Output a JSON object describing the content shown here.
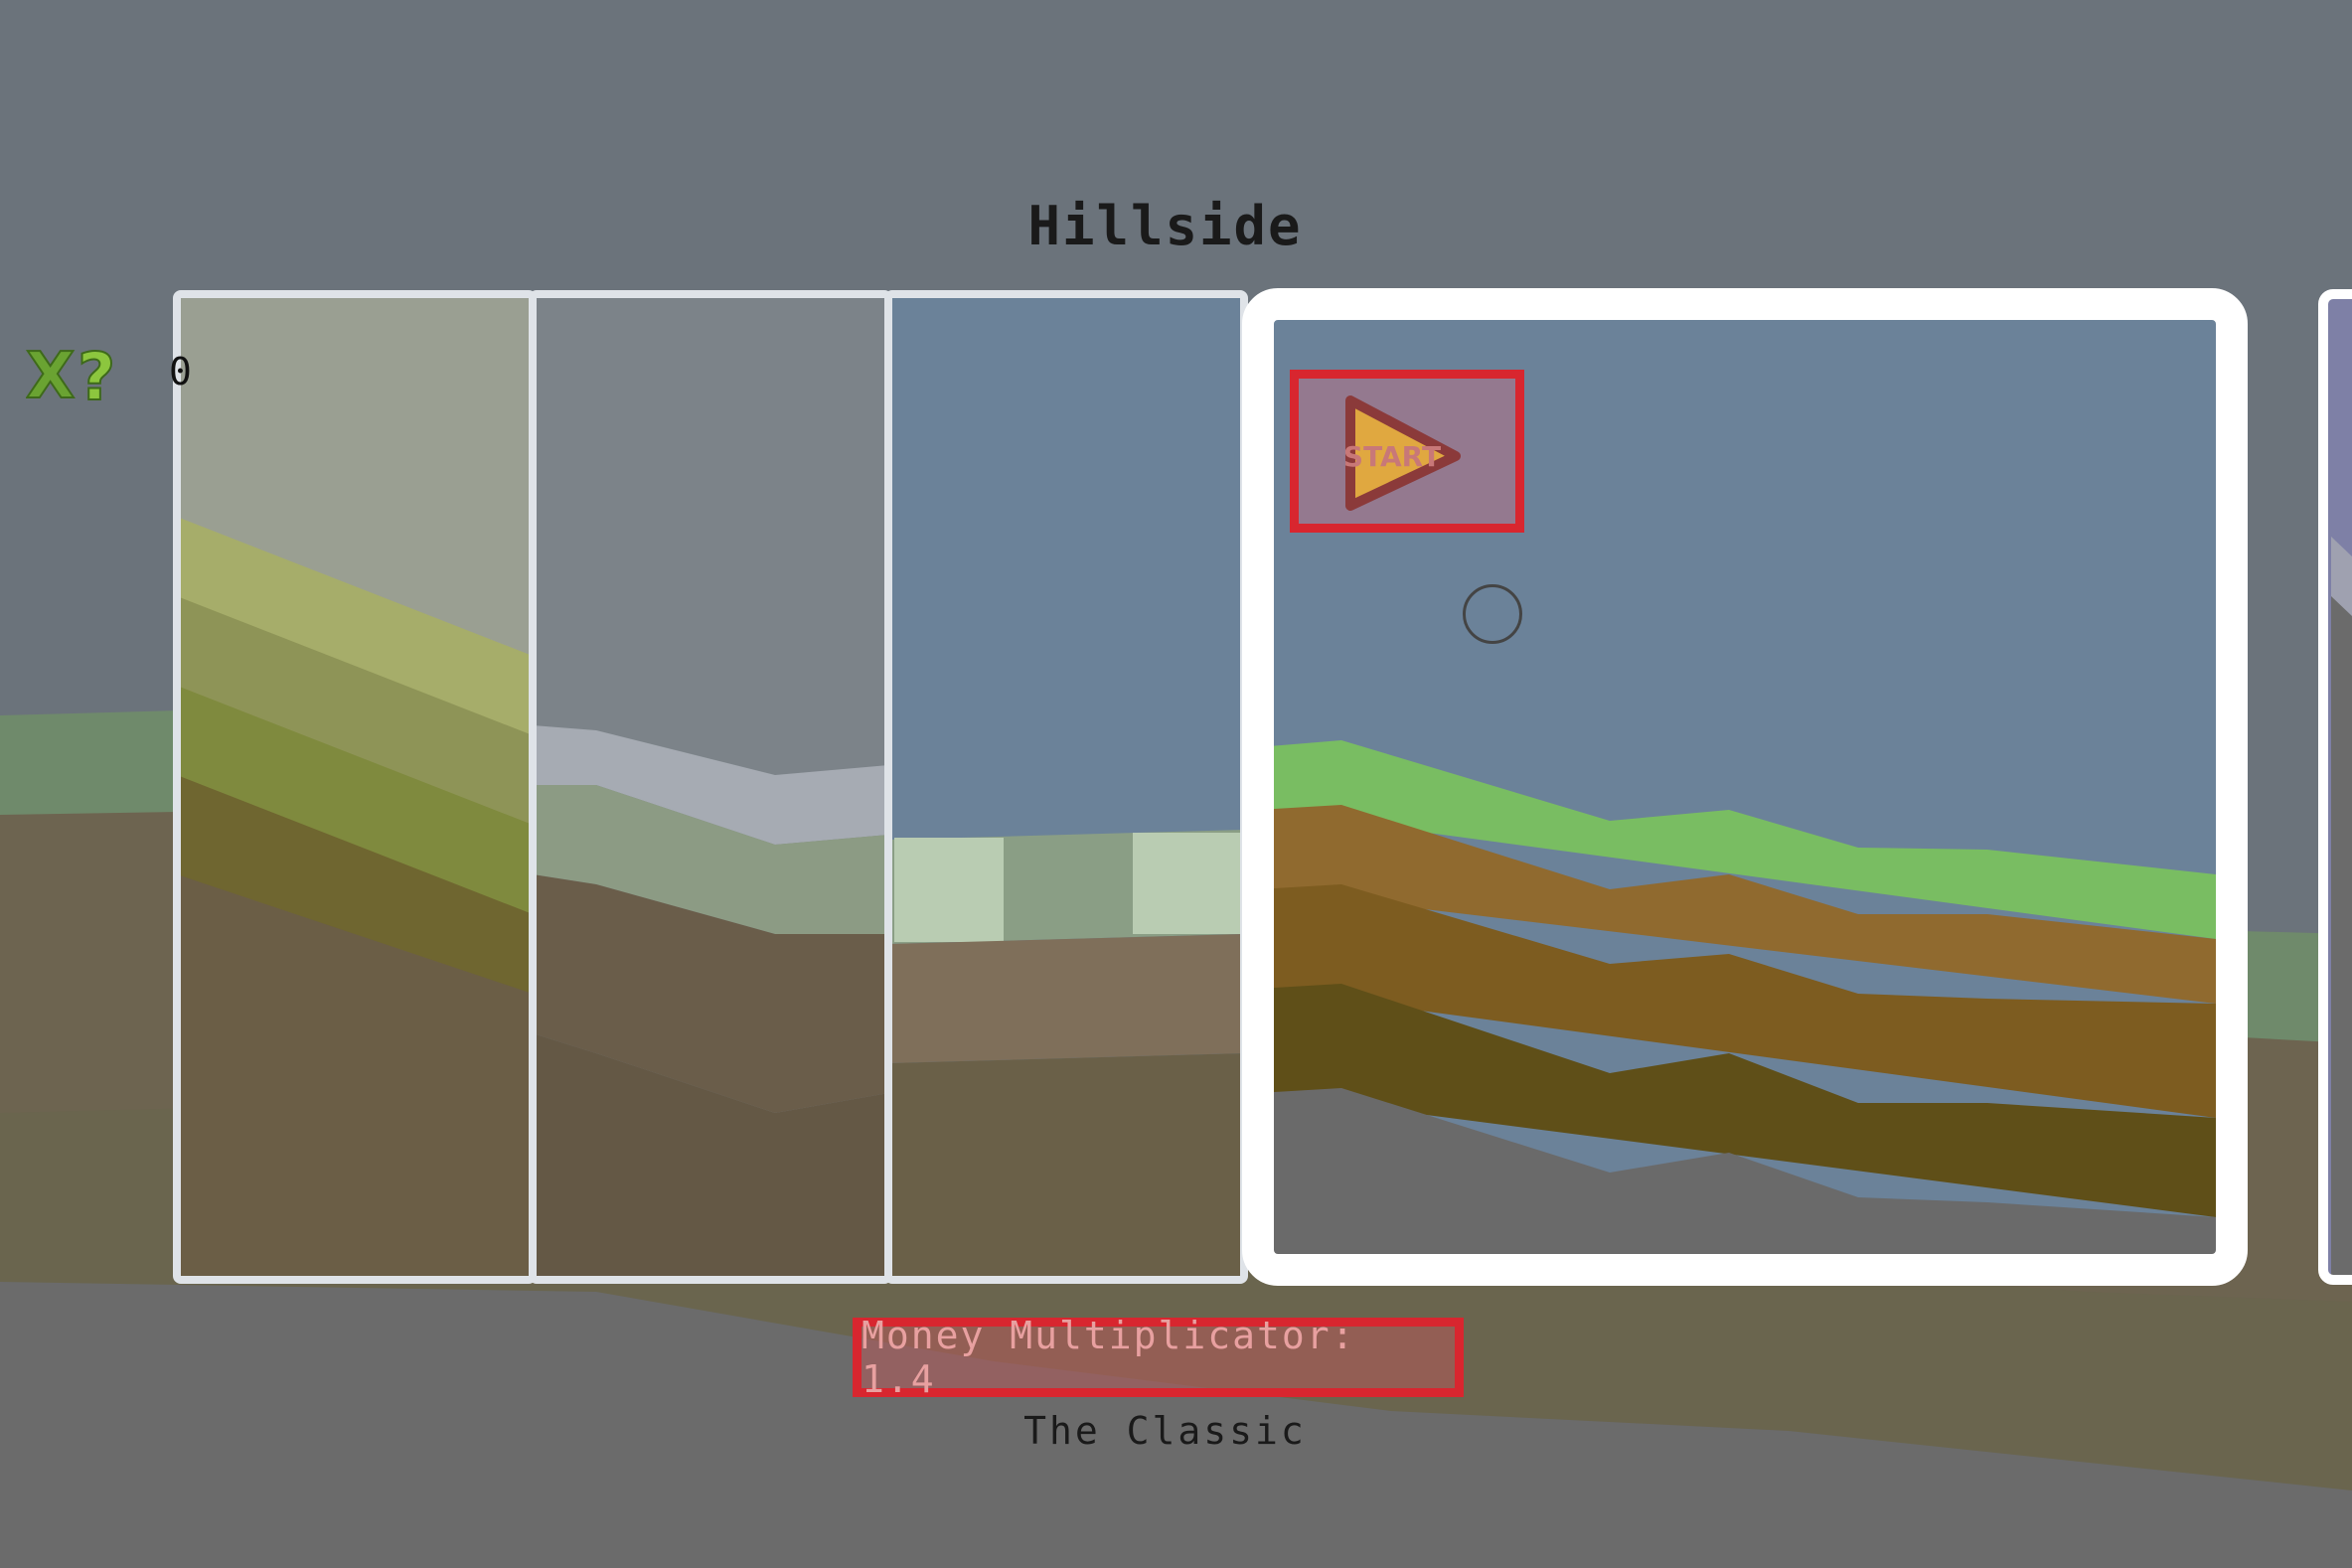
{
  "level": {
    "name": "Hillside",
    "subtitle": "The Classic",
    "multiplier_label": "Money Multiplicator: 1.4"
  },
  "xp": {
    "icon": "xp-icon",
    "value": "0"
  },
  "start_button": {
    "label": "START",
    "icon": "play-triangle-icon"
  },
  "colors": {
    "background": "#6b737b",
    "sky": "#6b8299",
    "grass": "#79bd62",
    "dirt": "#906a2f",
    "deep_dirt": "#7d5c20",
    "rock": "#5f4f18",
    "selection_border": "#ffffff",
    "highlight_red": "#d8262f"
  }
}
